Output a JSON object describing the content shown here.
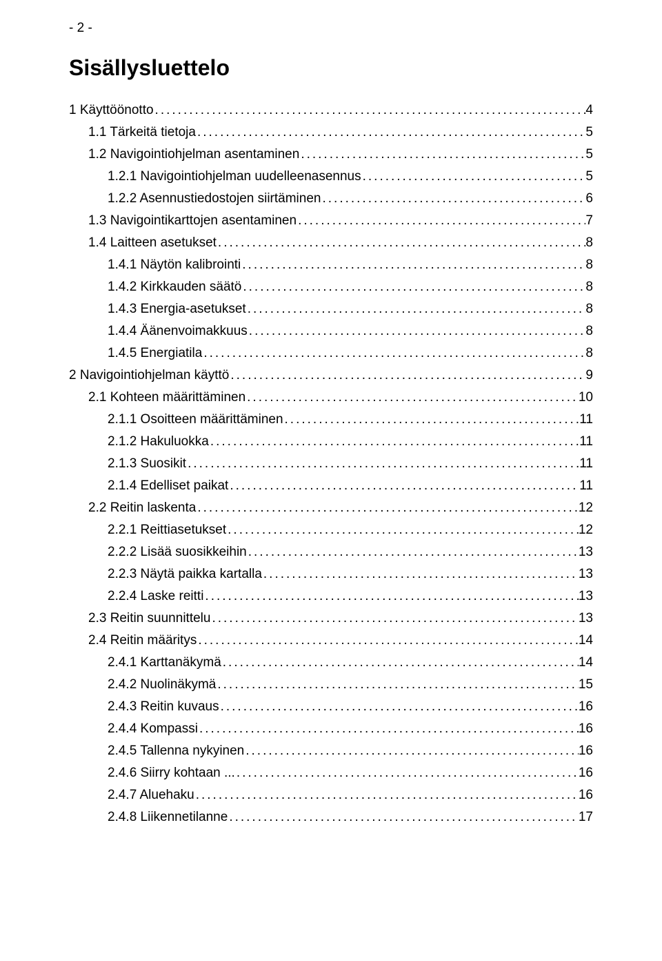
{
  "page_number_label": "- 2 -",
  "title": "Sisällysluettelo",
  "entries": [
    {
      "label": "1 Käyttöönotto",
      "page": "4",
      "level": 0
    },
    {
      "label": "1.1 Tärkeitä tietoja",
      "page": "5",
      "level": 1
    },
    {
      "label": "1.2 Navigointiohjelman asentaminen",
      "page": "5",
      "level": 1
    },
    {
      "label": "1.2.1 Navigointiohjelman uudelleenasennus",
      "page": "5",
      "level": 2
    },
    {
      "label": "1.2.2 Asennustiedostojen siirtäminen",
      "page": "6",
      "level": 2
    },
    {
      "label": "1.3 Navigointikarttojen asentaminen",
      "page": "7",
      "level": 1
    },
    {
      "label": "1.4 Laitteen asetukset",
      "page": "8",
      "level": 1
    },
    {
      "label": "1.4.1 Näytön kalibrointi",
      "page": "8",
      "level": 2
    },
    {
      "label": "1.4.2 Kirkkauden säätö",
      "page": "8",
      "level": 2
    },
    {
      "label": "1.4.3 Energia-asetukset",
      "page": "8",
      "level": 2
    },
    {
      "label": "1.4.4 Äänenvoimakkuus",
      "page": "8",
      "level": 2
    },
    {
      "label": "1.4.5 Energiatila",
      "page": "8",
      "level": 2
    },
    {
      "label": "2 Navigointiohjelman käyttö",
      "page": "9",
      "level": 0
    },
    {
      "label": "2.1 Kohteen määrittäminen",
      "page": "10",
      "level": 1
    },
    {
      "label": "2.1.1 Osoitteen määrittäminen",
      "page": "11",
      "level": 2
    },
    {
      "label": "2.1.2 Hakuluokka",
      "page": "11",
      "level": 2
    },
    {
      "label": "2.1.3 Suosikit",
      "page": "11",
      "level": 2
    },
    {
      "label": "2.1.4 Edelliset paikat",
      "page": "11",
      "level": 2
    },
    {
      "label": "2.2 Reitin laskenta",
      "page": "12",
      "level": 1
    },
    {
      "label": "2.2.1 Reittiasetukset",
      "page": "12",
      "level": 2
    },
    {
      "label": "2.2.2 Lisää suosikkeihin",
      "page": "13",
      "level": 2
    },
    {
      "label": "2.2.3 Näytä paikka kartalla",
      "page": "13",
      "level": 2
    },
    {
      "label": "2.2.4 Laske reitti",
      "page": "13",
      "level": 2
    },
    {
      "label": "2.3 Reitin suunnittelu",
      "page": "13",
      "level": 1
    },
    {
      "label": "2.4 Reitin määritys",
      "page": "14",
      "level": 1
    },
    {
      "label": "2.4.1 Karttanäkymä",
      "page": "14",
      "level": 2
    },
    {
      "label": "2.4.2 Nuolinäkymä",
      "page": "15",
      "level": 2
    },
    {
      "label": "2.4.3 Reitin kuvaus",
      "page": "16",
      "level": 2
    },
    {
      "label": "2.4.4 Kompassi",
      "page": "16",
      "level": 2
    },
    {
      "label": "2.4.5 Tallenna nykyinen",
      "page": "16",
      "level": 2
    },
    {
      "label": "2.4.6 Siirry kohtaan ...",
      "page": "16",
      "level": 2
    },
    {
      "label": "2.4.7 Aluehaku",
      "page": "16",
      "level": 2
    },
    {
      "label": "2.4.8 Liikennetilanne",
      "page": "17",
      "level": 2
    }
  ]
}
